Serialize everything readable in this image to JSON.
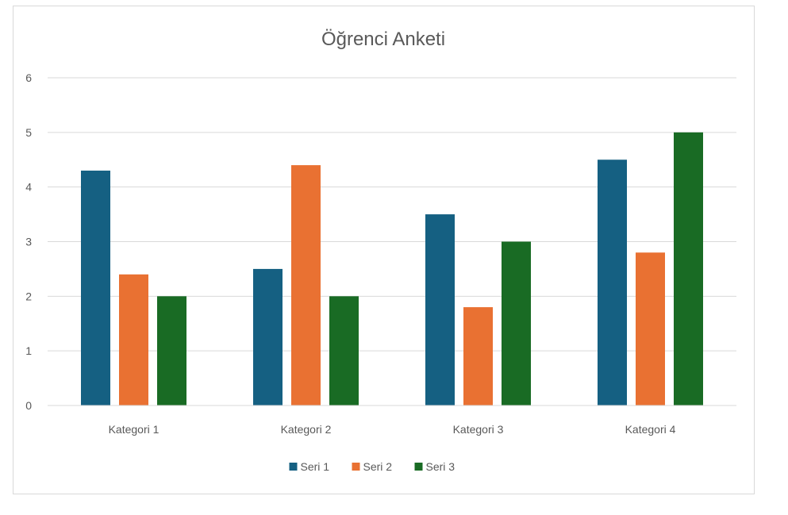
{
  "chart_data": {
    "type": "bar",
    "title": "Öğrenci Anketi",
    "categories": [
      "Kategori 1",
      "Kategori 2",
      "Kategori 3",
      "Kategori 4"
    ],
    "series": [
      {
        "name": "Seri 1",
        "color": "#156082",
        "values": [
          4.3,
          2.5,
          3.5,
          4.5
        ]
      },
      {
        "name": "Seri 2",
        "color": "#e97132",
        "values": [
          2.4,
          4.4,
          1.8,
          2.8
        ]
      },
      {
        "name": "Seri 3",
        "color": "#196b24",
        "values": [
          2,
          2,
          3,
          5
        ]
      }
    ],
    "ylim": [
      0,
      6
    ],
    "yticks": [
      "0",
      "1",
      "2",
      "3",
      "4",
      "5",
      "6"
    ],
    "grid": true,
    "legend_position": "bottom"
  }
}
